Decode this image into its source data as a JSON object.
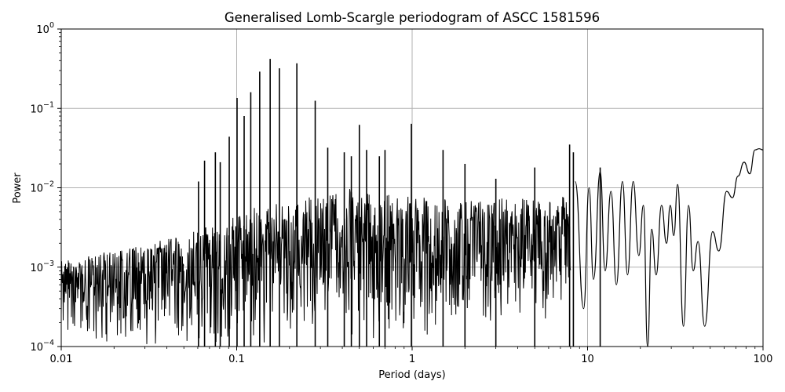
{
  "chart_data": {
    "type": "line",
    "title": "Generalised Lomb-Scargle periodogram of ASCC 1581596",
    "xlabel": "Period (days)",
    "ylabel": "Power",
    "xscale": "log",
    "yscale": "log",
    "xlim": [
      0.01,
      100
    ],
    "ylim": [
      0.0001,
      1
    ],
    "grid": true,
    "x_ticks": [
      {
        "value": 0.01,
        "label": "0.01"
      },
      {
        "value": 0.1,
        "label": "0.1"
      },
      {
        "value": 1,
        "label": "1"
      },
      {
        "value": 10,
        "label": "10"
      },
      {
        "value": 100,
        "label": "100"
      }
    ],
    "y_ticks": [
      {
        "value": 0.0001,
        "base": "10",
        "exp": "−4"
      },
      {
        "value": 0.001,
        "base": "10",
        "exp": "−3"
      },
      {
        "value": 0.01,
        "base": "10",
        "exp": "−2"
      },
      {
        "value": 0.1,
        "base": "10",
        "exp": "−1"
      },
      {
        "value": 1,
        "base": "10",
        "exp": "0"
      }
    ],
    "line_color": "#000000",
    "grid_color": "#b0b0b0",
    "series": [
      {
        "peaks": [
          [
            0.0907,
            0.044
          ],
          [
            0.1005,
            0.135
          ],
          [
            0.1103,
            0.08
          ],
          [
            0.1203,
            0.16
          ],
          [
            0.1353,
            0.29
          ],
          [
            0.1552,
            0.42
          ],
          [
            0.1752,
            0.32
          ],
          [
            0.2203,
            0.37
          ],
          [
            0.2803,
            0.125
          ],
          [
            0.3304,
            0.032
          ],
          [
            0.5003,
            0.062
          ],
          [
            0.9903,
            0.064
          ],
          [
            0.0656,
            0.022
          ],
          [
            0.0756,
            0.028
          ],
          [
            0.0806,
            0.021
          ],
          [
            0.0606,
            0.012
          ],
          [
            0.4104,
            0.028
          ],
          [
            0.4504,
            0.025
          ],
          [
            0.7005,
            0.03
          ],
          [
            0.6505,
            0.025
          ],
          [
            0.5503,
            0.03
          ],
          [
            1.5006,
            0.03
          ],
          [
            2.0005,
            0.02
          ],
          [
            3.0006,
            0.013
          ],
          [
            5.0005,
            0.018
          ],
          [
            7.9006,
            0.035
          ],
          [
            8.3005,
            0.028
          ],
          [
            11.8,
            0.018
          ]
        ],
        "envelope_segments": [
          {
            "p1": 0.01,
            "p2": 0.05,
            "top1": 0.0012,
            "top2": 0.0025,
            "bot": 0.0001
          },
          {
            "p1": 0.05,
            "p2": 0.1,
            "top1": 0.0025,
            "top2": 0.0045,
            "bot": 0.0001
          },
          {
            "p1": 0.1,
            "p2": 0.5,
            "top1": 0.005,
            "top2": 0.011,
            "bot": 0.0001
          },
          {
            "p1": 0.5,
            "p2": 2,
            "top1": 0.009,
            "top2": 0.007,
            "bot": 0.00012
          },
          {
            "p1": 2,
            "p2": 8,
            "top1": 0.007,
            "top2": 0.008,
            "bot": 0.0002
          }
        ],
        "smooth_tail": [
          [
            8.5,
            0.012
          ],
          [
            9.5,
            0.0003
          ],
          [
            10.2,
            0.01
          ],
          [
            10.8,
            0.0007
          ],
          [
            11.8,
            0.016
          ],
          [
            12.6,
            0.0009
          ],
          [
            13.6,
            0.009
          ],
          [
            14.6,
            0.0006
          ],
          [
            15.8,
            0.012
          ],
          [
            16.9,
            0.0008
          ],
          [
            18.2,
            0.012
          ],
          [
            19.6,
            0.0014
          ],
          [
            20.8,
            0.006
          ],
          [
            22.0,
            0.0001
          ],
          [
            23.2,
            0.003
          ],
          [
            24.6,
            0.0008
          ],
          [
            26.4,
            0.006
          ],
          [
            28.2,
            0.002
          ],
          [
            29.6,
            0.006
          ],
          [
            31.0,
            0.0025
          ],
          [
            32.6,
            0.011
          ],
          [
            35.2,
            0.00018
          ],
          [
            37.6,
            0.006
          ],
          [
            40.0,
            0.0009
          ],
          [
            42.6,
            0.0021
          ],
          [
            46.5,
            0.00018
          ],
          [
            51.6,
            0.0028
          ],
          [
            56.0,
            0.0016
          ],
          [
            62.0,
            0.009
          ],
          [
            67.0,
            0.0075
          ],
          [
            72.0,
            0.014
          ],
          [
            78.0,
            0.021
          ],
          [
            84.0,
            0.015
          ],
          [
            90.0,
            0.03
          ],
          [
            95.0,
            0.031
          ],
          [
            100.0,
            0.03
          ]
        ]
      }
    ]
  }
}
